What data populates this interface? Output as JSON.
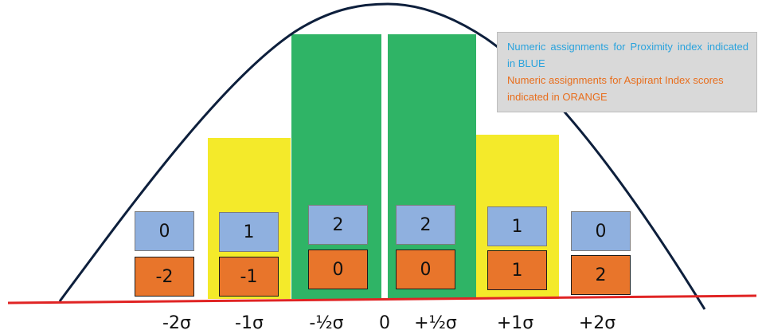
{
  "colors": {
    "band_outer": "#f4ea2a",
    "band_inner": "#2fb466",
    "curve": "#0d1f3c",
    "baseline": "#e02424",
    "proximity_box": "#8fb0df",
    "aspirant_box": "#e8752b",
    "legend_blue_text": "#2aa3dd",
    "legend_orange_text": "#e86e1d",
    "legend_bg": "#d9d9d9"
  },
  "legend": {
    "blue_line": "Numeric assignments for Proximity index indicated in BLUE",
    "orange_line": "Numeric assignments for Aspirant Index scores indicated in ORANGE"
  },
  "axis_labels": [
    "-2σ",
    "-1σ",
    "-½σ",
    "0",
    "+½σ",
    "+1σ",
    "+2σ"
  ],
  "bands": [
    {
      "label": "-2σ",
      "proximity": "0",
      "aspirant": "-2"
    },
    {
      "label": "-1σ",
      "proximity": "1",
      "aspirant": "-1"
    },
    {
      "label": "-½σ",
      "proximity": "2",
      "aspirant": "0"
    },
    {
      "label": "+½σ",
      "proximity": "2",
      "aspirant": "0"
    },
    {
      "label": "+1σ",
      "proximity": "1",
      "aspirant": "1"
    },
    {
      "label": "+2σ",
      "proximity": "0",
      "aspirant": "2"
    }
  ]
}
